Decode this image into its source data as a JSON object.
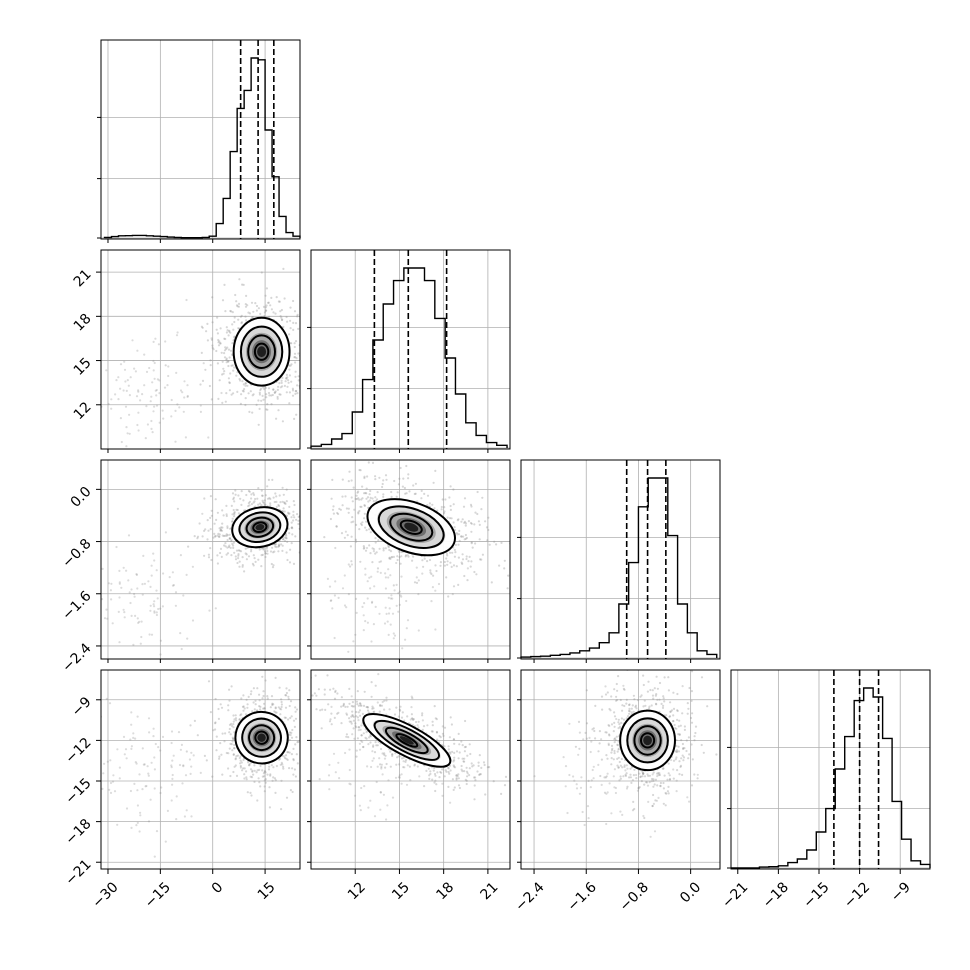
{
  "chart_data": {
    "type": "corner",
    "parameters": 4,
    "grid": true,
    "scatter_color": "#8c8c8c",
    "ranges": [
      [
        -32,
        25
      ],
      [
        9,
        22.5
      ],
      [
        -2.6,
        0.45
      ],
      [
        -21.5,
        -6.8
      ]
    ],
    "ticks": [
      {
        "values": [
          -30,
          -15,
          0,
          15
        ],
        "labels": [
          "−30",
          "−15",
          "0",
          "15"
        ]
      },
      {
        "values": [
          12,
          15,
          18,
          21
        ],
        "labels": [
          "12",
          "15",
          "18",
          "21"
        ]
      },
      {
        "values": [
          -2.4,
          -1.6,
          -0.8,
          0.0
        ],
        "labels": [
          "−2.4",
          "−1.6",
          "−0.8",
          "0.0"
        ]
      },
      {
        "values": [
          -21,
          -18,
          -15,
          -12,
          -9
        ],
        "labels": [
          "−21",
          "−18",
          "−15",
          "−12",
          "−9"
        ]
      }
    ],
    "hist_tick_fractions": [
      0.0,
      0.33,
      0.67
    ],
    "histograms": [
      {
        "bins": [
          -31,
          -29,
          -27,
          -25,
          -23,
          -21,
          -19,
          -17,
          -15,
          -13,
          -11,
          -9,
          -7,
          -5,
          -3,
          -1,
          1,
          3,
          5,
          7,
          9,
          11,
          13,
          15,
          17,
          19,
          21,
          23,
          25
        ],
        "heights": [
          0.003,
          0.008,
          0.012,
          0.013,
          0.014,
          0.014,
          0.012,
          0.01,
          0.008,
          0.005,
          0.003,
          0.002,
          0.002,
          0.002,
          0.003,
          0.01,
          0.08,
          0.22,
          0.48,
          0.72,
          0.82,
          1.0,
          0.99,
          0.6,
          0.34,
          0.12,
          0.03,
          0.01
        ],
        "quantiles": [
          8.0,
          13.0,
          17.5
        ]
      },
      {
        "bins": [
          9,
          9.7,
          10.4,
          11.1,
          11.8,
          12.5,
          13.2,
          13.9,
          14.6,
          15.3,
          16,
          16.7,
          17.4,
          18.1,
          18.8,
          19.5,
          20.2,
          20.9,
          21.6,
          22.3
        ],
        "heights": [
          0.01,
          0.02,
          0.05,
          0.08,
          0.2,
          0.38,
          0.6,
          0.8,
          0.93,
          1.0,
          1.0,
          0.93,
          0.72,
          0.5,
          0.3,
          0.14,
          0.07,
          0.03,
          0.015
        ],
        "quantiles": [
          13.3,
          15.6,
          18.2
        ]
      },
      {
        "bins": [
          -2.6,
          -2.45,
          -2.3,
          -2.15,
          -2.0,
          -1.85,
          -1.7,
          -1.55,
          -1.4,
          -1.25,
          -1.1,
          -0.95,
          -0.8,
          -0.65,
          -0.5,
          -0.35,
          -0.2,
          -0.05,
          0.1,
          0.25,
          0.4
        ],
        "heights": [
          0.005,
          0.008,
          0.01,
          0.015,
          0.02,
          0.028,
          0.04,
          0.055,
          0.085,
          0.14,
          0.3,
          0.53,
          0.84,
          1.0,
          1.0,
          0.68,
          0.3,
          0.14,
          0.04,
          0.02
        ],
        "quantiles": [
          -0.98,
          -0.66,
          -0.38
        ]
      },
      {
        "bins": [
          -21.5,
          -20.8,
          -20.1,
          -19.4,
          -18.7,
          -18,
          -17.3,
          -16.6,
          -15.9,
          -15.2,
          -14.5,
          -13.8,
          -13.1,
          -12.4,
          -11.7,
          -11,
          -10.3,
          -9.6,
          -8.9,
          -8.2,
          -7.5,
          -6.8
        ],
        "heights": [
          0.0,
          0.0,
          0.0,
          0.005,
          0.007,
          0.012,
          0.03,
          0.05,
          0.1,
          0.2,
          0.33,
          0.55,
          0.73,
          0.93,
          1.0,
          0.95,
          0.72,
          0.37,
          0.16,
          0.04,
          0.02
        ],
        "quantiles": [
          -13.9,
          -12.0,
          -10.6
        ]
      }
    ],
    "pairs": [
      {
        "x": 0,
        "y": 1,
        "center": [
          14,
          15.6
        ],
        "rx": 8,
        "ry": 2.3,
        "tilt_deg": 0,
        "outlier_center": [
          -20,
          13
        ]
      },
      {
        "x": 0,
        "y": 2,
        "center": [
          13.5,
          -0.58
        ],
        "rx": 8,
        "ry": 0.3,
        "tilt_deg": -12,
        "outlier_center": [
          -22,
          -1.7
        ]
      },
      {
        "x": 1,
        "y": 2,
        "center": [
          15.8,
          -0.58
        ],
        "rx": 3.1,
        "ry": 0.38,
        "tilt_deg": 20,
        "outlier_center": [
          14,
          -1.6
        ]
      },
      {
        "x": 0,
        "y": 3,
        "center": [
          14,
          -11.8
        ],
        "rx": 7.5,
        "ry": 1.9,
        "tilt_deg": 18,
        "outlier_center": [
          -20,
          -14
        ]
      },
      {
        "x": 1,
        "y": 3,
        "center": [
          15.5,
          -12
        ],
        "rx": 3.3,
        "ry": 1.1,
        "tilt_deg": 28,
        "outlier_center": [
          14,
          -13
        ]
      },
      {
        "x": 2,
        "y": 3,
        "center": [
          -0.66,
          -12
        ],
        "rx": 0.42,
        "ry": 2.2,
        "tilt_deg": 0,
        "outlier_center": [
          -1.1,
          -14
        ]
      }
    ]
  }
}
